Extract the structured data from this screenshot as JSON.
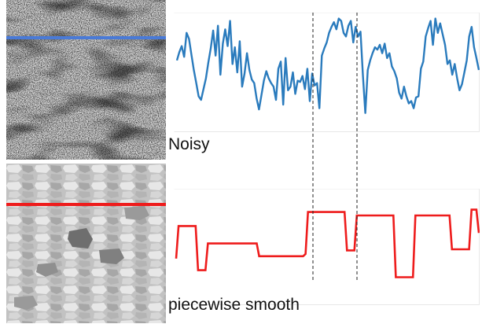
{
  "colors": {
    "noisy": "#2a7bbd",
    "noisy_marker": "#4a7ad6",
    "smooth": "#ee1c1c",
    "guide": "#222222"
  },
  "captions": {
    "noisy": "Noisy",
    "smooth": "piecewise smooth"
  },
  "chart_data": [
    {
      "type": "line",
      "series": [
        {
          "values": [
            0.6,
            0.67,
            0.72,
            0.63,
            0.83,
            0.78,
            0.65,
            0.52,
            0.41,
            0.3,
            0.27,
            0.36,
            0.45,
            0.58,
            0.7,
            0.85,
            0.64,
            0.89,
            0.48,
            0.74,
            0.86,
            0.72,
            0.93,
            0.57,
            0.71,
            0.5,
            0.76,
            0.38,
            0.49,
            0.66,
            0.52,
            0.44,
            0.41,
            0.28,
            0.19,
            0.31,
            0.43,
            0.51,
            0.45,
            0.41,
            0.38,
            0.27,
            0.53,
            0.59,
            0.23,
            0.62,
            0.35,
            0.38,
            0.5,
            0.32,
            0.43,
            0.42,
            0.47,
            0.36,
            0.53,
            0.26,
            0.49,
            0.39,
            0.41,
            0.2,
            0.64,
            0.7,
            0.75,
            0.83,
            0.88,
            0.92,
            0.86,
            0.95,
            0.93,
            0.83,
            0.8,
            0.89,
            0.93,
            0.75,
            0.88,
            0.8,
            0.84,
            0.48,
            0.16,
            0.52,
            0.6,
            0.66,
            0.71,
            0.69,
            0.73,
            0.66,
            0.74,
            0.62,
            0.66,
            0.55,
            0.51,
            0.45,
            0.33,
            0.28,
            0.38,
            0.3,
            0.24,
            0.26,
            0.2,
            0.29,
            0.3,
            0.53,
            0.59,
            0.8,
            0.87,
            0.93,
            0.73,
            0.95,
            0.83,
            0.91,
            0.82,
            0.73,
            0.57,
            0.6,
            0.48,
            0.57,
            0.45,
            0.35,
            0.4,
            0.5,
            0.6,
            0.8,
            0.88,
            0.71,
            0.62,
            0.52
          ]
        }
      ]
    },
    {
      "type": "line",
      "series": [
        {
          "values": [
            0.4,
            0.68,
            0.68,
            0.68,
            0.68,
            0.68,
            0.68,
            0.68,
            0.68,
            0.3,
            0.3,
            0.3,
            0.3,
            0.53,
            0.53,
            0.53,
            0.53,
            0.53,
            0.53,
            0.53,
            0.53,
            0.53,
            0.53,
            0.53,
            0.53,
            0.53,
            0.53,
            0.53,
            0.53,
            0.53,
            0.53,
            0.53,
            0.53,
            0.53,
            0.42,
            0.42,
            0.42,
            0.42,
            0.42,
            0.42,
            0.42,
            0.42,
            0.42,
            0.42,
            0.42,
            0.42,
            0.42,
            0.42,
            0.42,
            0.42,
            0.42,
            0.42,
            0.42,
            0.44,
            0.8,
            0.8,
            0.8,
            0.8,
            0.8,
            0.8,
            0.8,
            0.8,
            0.8,
            0.8,
            0.8,
            0.8,
            0.8,
            0.8,
            0.8,
            0.8,
            0.47,
            0.47,
            0.47,
            0.47,
            0.77,
            0.77,
            0.77,
            0.77,
            0.77,
            0.77,
            0.77,
            0.77,
            0.77,
            0.77,
            0.77,
            0.77,
            0.77,
            0.77,
            0.77,
            0.77,
            0.24,
            0.24,
            0.24,
            0.24,
            0.24,
            0.24,
            0.24,
            0.24,
            0.77,
            0.77,
            0.77,
            0.77,
            0.77,
            0.77,
            0.77,
            0.77,
            0.77,
            0.77,
            0.77,
            0.77,
            0.77,
            0.77,
            0.77,
            0.48,
            0.48,
            0.48,
            0.48,
            0.48,
            0.48,
            0.48,
            0.48,
            0.82,
            0.82,
            0.82,
            0.62
          ]
        }
      ]
    }
  ]
}
